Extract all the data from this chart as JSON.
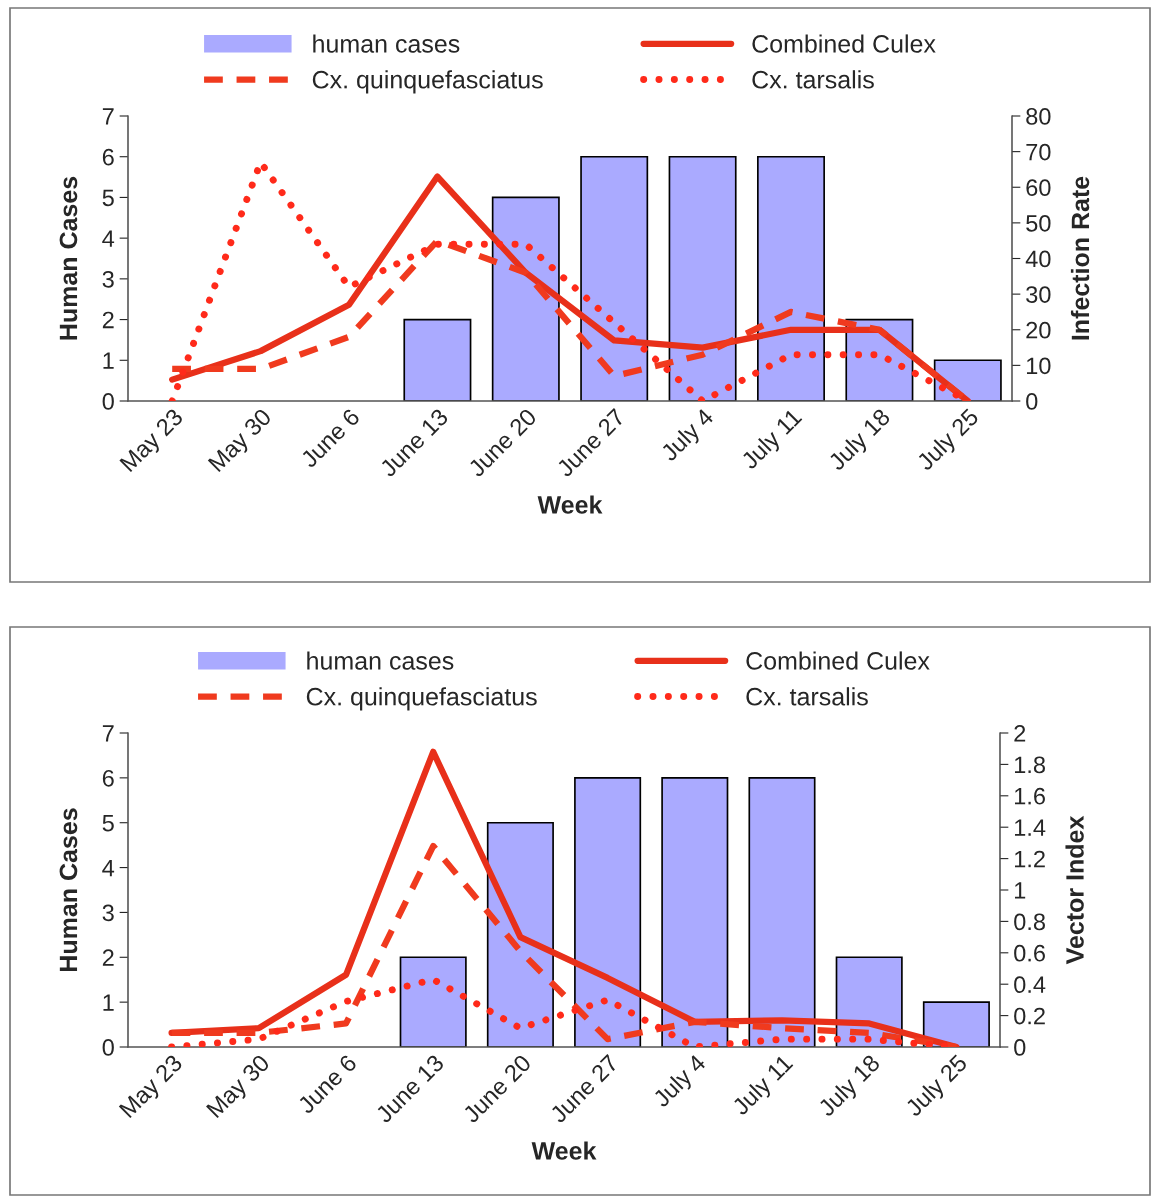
{
  "chart_data": [
    {
      "type": "bar",
      "categories": [
        "May 23",
        "May 30",
        "June 6",
        "June 13",
        "June 20",
        "June 27",
        "July 4",
        "July 11",
        "July 18",
        "July 25"
      ],
      "xlabel": "Week",
      "ylabel": "Human Cases",
      "y2label": "Infection Rate",
      "ylim": [
        0,
        7
      ],
      "yticks": [
        0,
        1,
        2,
        3,
        4,
        5,
        6,
        7
      ],
      "y2lim": [
        0,
        80
      ],
      "y2ticks": [
        0,
        10,
        20,
        30,
        40,
        50,
        60,
        70,
        80
      ],
      "legend": "top",
      "grid": false,
      "series": [
        {
          "name": "human cases",
          "color": "#aaaaff",
          "values": [
            0,
            0,
            0,
            2,
            5,
            6,
            6,
            6,
            2,
            1
          ]
        },
        {
          "name": "Combined Culex",
          "type": "line",
          "axis": "y2",
          "line_style": "solid",
          "color": "#e8301a",
          "values": [
            6,
            14,
            27,
            63,
            36,
            17,
            15,
            20,
            20,
            0
          ]
        },
        {
          "name": "Cx. quinquefasciatus",
          "type": "line",
          "axis": "y2",
          "line_style": "dashed",
          "color": "#f03a1e",
          "values": [
            9,
            9,
            18,
            45,
            36,
            7,
            13,
            25,
            20,
            0
          ]
        },
        {
          "name": "Cx. tarsalis",
          "type": "line",
          "axis": "y2",
          "line_style": "dotted",
          "color": "#ff2a1a",
          "values": [
            0,
            67,
            32,
            44,
            44,
            22,
            0,
            13,
            13,
            0
          ]
        }
      ]
    },
    {
      "type": "bar",
      "categories": [
        "May 23",
        "May 30",
        "June 6",
        "June 13",
        "June 20",
        "June 27",
        "July 4",
        "July 11",
        "July 18",
        "July 25"
      ],
      "xlabel": "Week",
      "ylabel": "Human Cases",
      "y2label": "Vector Index",
      "ylim": [
        0,
        7
      ],
      "yticks": [
        0,
        1,
        2,
        3,
        4,
        5,
        6,
        7
      ],
      "y2lim": [
        0,
        2
      ],
      "y2ticks": [
        0,
        0.2,
        0.4,
        0.6,
        0.8,
        1,
        1.2,
        1.4,
        1.6,
        1.8,
        2
      ],
      "legend": "top",
      "grid": false,
      "series": [
        {
          "name": "human cases",
          "color": "#aaaaff",
          "values": [
            0,
            0,
            0,
            2,
            5,
            6,
            6,
            6,
            2,
            1
          ]
        },
        {
          "name": "Combined Culex",
          "type": "line",
          "axis": "y2",
          "line_style": "solid",
          "color": "#e8301a",
          "values": [
            0.09,
            0.12,
            0.46,
            1.88,
            0.7,
            0.44,
            0.16,
            0.17,
            0.15,
            0
          ]
        },
        {
          "name": "Cx. quinquefasciatus",
          "type": "line",
          "axis": "y2",
          "line_style": "dashed",
          "color": "#f03a1e",
          "values": [
            0.09,
            0.09,
            0.15,
            1.28,
            0.61,
            0.05,
            0.16,
            0.12,
            0.09,
            0
          ]
        },
        {
          "name": "Cx. tarsalis",
          "type": "line",
          "axis": "y2",
          "line_style": "dotted",
          "color": "#ff2a1a",
          "values": [
            0,
            0.05,
            0.29,
            0.43,
            0.12,
            0.3,
            0,
            0.05,
            0.05,
            0
          ]
        }
      ]
    }
  ]
}
